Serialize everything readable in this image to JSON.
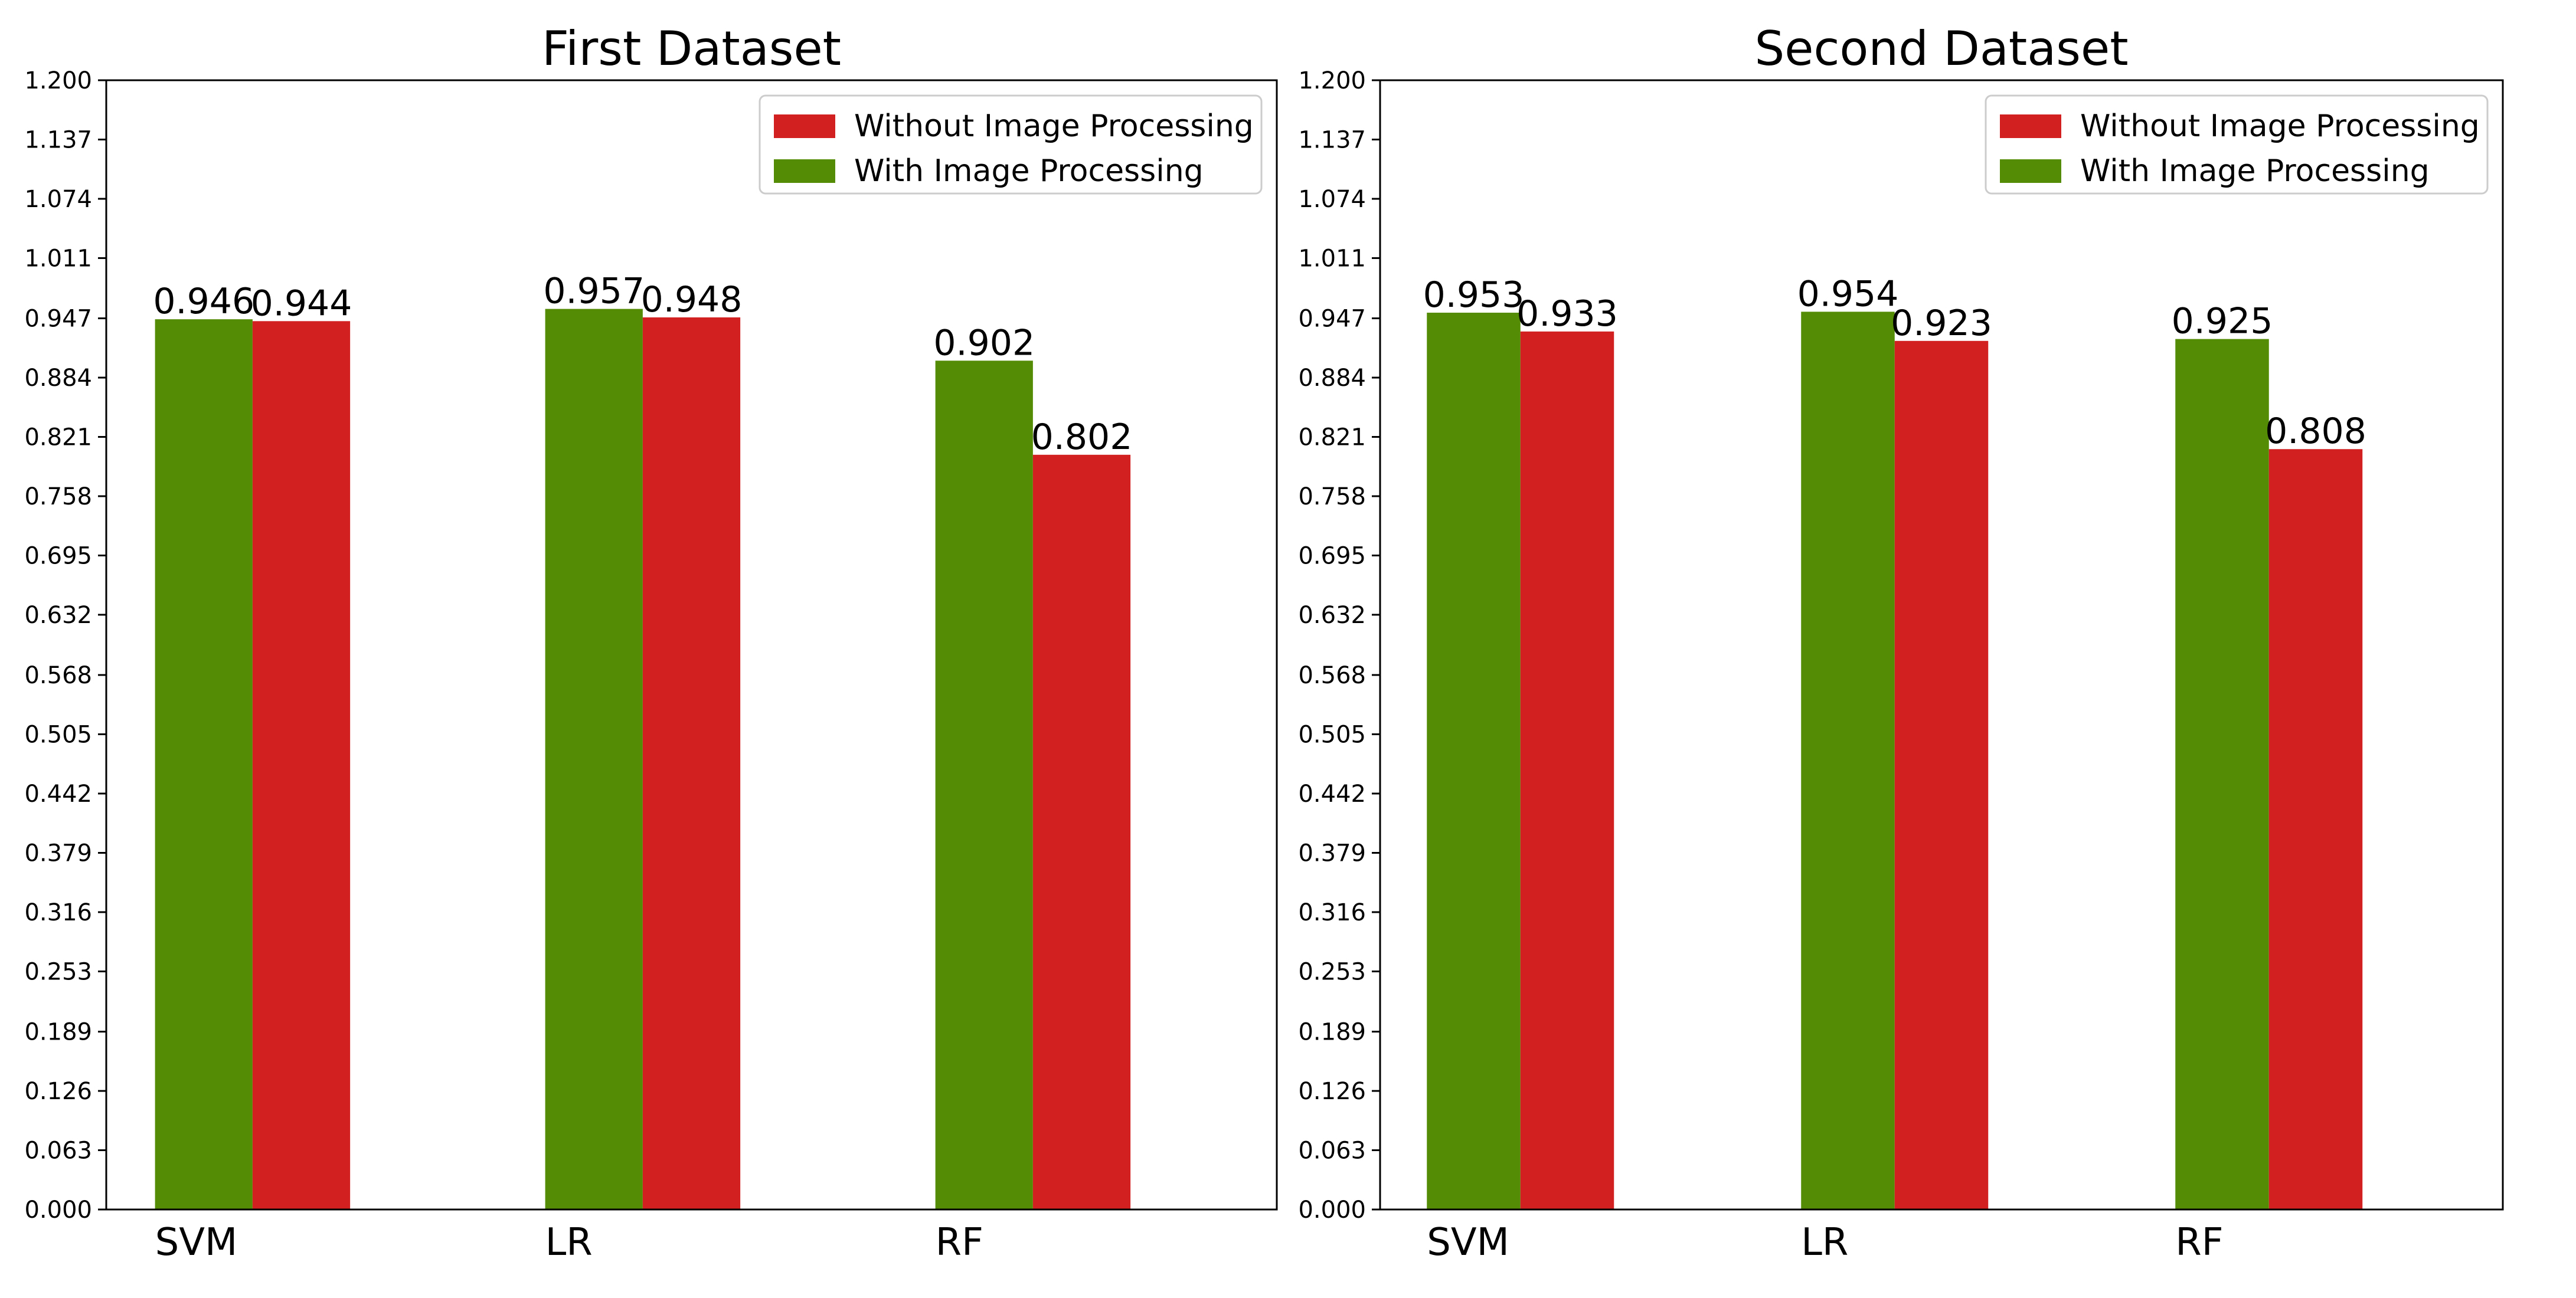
{
  "chart_data": [
    {
      "type": "bar",
      "title": "First Dataset",
      "xlabel": "",
      "ylabel": "",
      "categories": [
        "SVM",
        "LR",
        "RF"
      ],
      "series": [
        {
          "name": "With Image Processing",
          "color": "#548d05",
          "values": [
            0.946,
            0.957,
            0.902
          ]
        },
        {
          "name": "Without Image Processing",
          "color": "#d21f20",
          "values": [
            0.944,
            0.948,
            0.802
          ]
        }
      ],
      "value_labels": [
        [
          "0.946",
          "0.957",
          "0.902"
        ],
        [
          "0.944",
          "0.948",
          "0.802"
        ]
      ],
      "legend_order": [
        "Without Image Processing",
        "With Image Processing"
      ],
      "legend_position": "top-right",
      "ylim": [
        0,
        1.2
      ],
      "yticks": [
        "0.000",
        "0.063",
        "0.126",
        "0.189",
        "0.253",
        "0.316",
        "0.379",
        "0.442",
        "0.505",
        "0.568",
        "0.632",
        "0.695",
        "0.758",
        "0.821",
        "0.884",
        "0.947",
        "1.011",
        "1.074",
        "1.137",
        "1.200"
      ],
      "grid": false
    },
    {
      "type": "bar",
      "title": "Second Dataset",
      "xlabel": "",
      "ylabel": "",
      "categories": [
        "SVM",
        "LR",
        "RF"
      ],
      "series": [
        {
          "name": "With Image Processing",
          "color": "#548d05",
          "values": [
            0.953,
            0.954,
            0.925
          ]
        },
        {
          "name": "Without Image Processing",
          "color": "#d21f20",
          "values": [
            0.933,
            0.923,
            0.808
          ]
        }
      ],
      "value_labels": [
        [
          "0.953",
          "0.954",
          "0.925"
        ],
        [
          "0.933",
          "0.923",
          "0.808"
        ]
      ],
      "legend_order": [
        "Without Image Processing",
        "With Image Processing"
      ],
      "legend_position": "top-right",
      "ylim": [
        0,
        1.2
      ],
      "yticks": [
        "0.000",
        "0.063",
        "0.126",
        "0.189",
        "0.253",
        "0.316",
        "0.379",
        "0.442",
        "0.505",
        "0.568",
        "0.632",
        "0.695",
        "0.758",
        "0.821",
        "0.884",
        "0.947",
        "1.011",
        "1.074",
        "1.137",
        "1.200"
      ],
      "grid": false
    }
  ]
}
